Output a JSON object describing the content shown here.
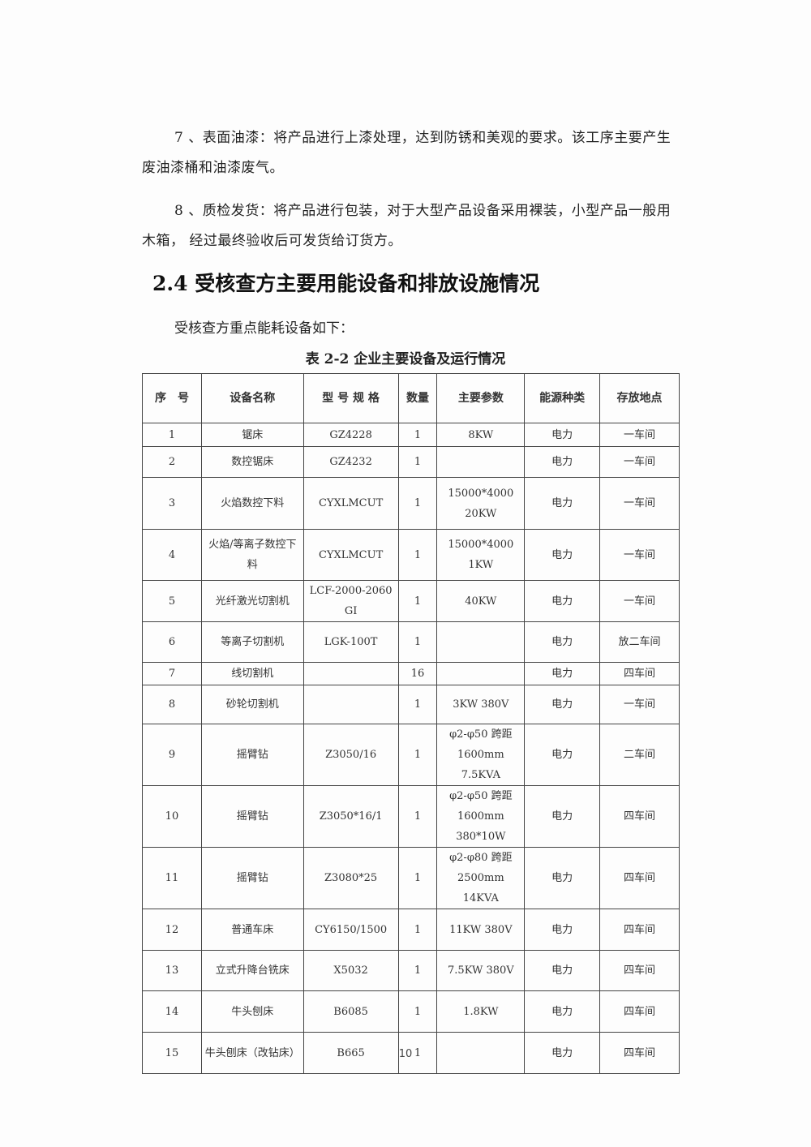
{
  "paragraphs": [
    "7 、表面油漆：将产品进行上漆处理，达到防锈和美观的要求。该工序主要产生废油漆桶和油漆废气。",
    "8 、质检发货：将产品进行包装，对于大型产品设备采用裸装，小型产品一般用木箱， 经过最终验收后可发货给订货方。"
  ],
  "section_heading": "2.4 受核查方主要用能设备和排放设施情况",
  "intro": "受核查方重点能耗设备如下：",
  "table_caption": "表 2-2  企业主要设备及运行情况",
  "table": {
    "headers": [
      "序　号",
      "设备名称",
      "型 号 规 格",
      "数量",
      "主要参数",
      "能源种类",
      "存放地点"
    ],
    "rows": [
      [
        "1",
        "锯床",
        "GZ4228",
        "1",
        "8KW",
        "电力",
        "一车间"
      ],
      [
        "2",
        "数控锯床",
        "GZ4232",
        "1",
        "",
        "电力",
        "一车间"
      ],
      [
        "3",
        "火焰数控下料",
        "CYXLMCUT",
        "1",
        "15000*4000 20KW",
        "电力",
        "一车间"
      ],
      [
        "4",
        "火焰/等离子数控下料",
        "CYXLMCUT",
        "1",
        "15000*4000 1KW",
        "电力",
        "一车间"
      ],
      [
        "5",
        "光纤激光切割机",
        "LCF-2000-2060GI",
        "1",
        "40KW",
        "电力",
        "一车间"
      ],
      [
        "6",
        "等离子切割机",
        "LGK-100T",
        "1",
        "",
        "电力",
        "放二车间"
      ],
      [
        "7",
        "线切割机",
        "",
        "16",
        "",
        "电力",
        "四车间"
      ],
      [
        "8",
        "砂轮切割机",
        "",
        "1",
        "3KW 380V",
        "电力",
        "一车间"
      ],
      [
        "9",
        "摇臂钻",
        "Z3050/16",
        "1",
        "φ2-φ50 跨距 1600mm 7.5KVA",
        "电力",
        "二车间"
      ],
      [
        "10",
        "摇臂钻",
        "Z3050*16/1",
        "1",
        "φ2-φ50 跨距 1600mm 380*10W",
        "电力",
        "四车间"
      ],
      [
        "11",
        "摇臂钻",
        "Z3080*25",
        "1",
        "φ2-φ80 跨距 2500mm 14KVA",
        "电力",
        "四车间"
      ],
      [
        "12",
        "普通车床",
        "CY6150/1500",
        "1",
        "11KW 380V",
        "电力",
        "四车间"
      ],
      [
        "13",
        "立式升降台铣床",
        "X5032",
        "1",
        "7.5KW 380V",
        "电力",
        "四车间"
      ],
      [
        "14",
        "牛头刨床",
        "B6085",
        "1",
        "1.8KW",
        "电力",
        "四车间"
      ],
      [
        "15",
        "牛头刨床（改钻床）",
        "B665",
        "1",
        "",
        "电力",
        "四车间"
      ]
    ]
  },
  "page_number": "10"
}
